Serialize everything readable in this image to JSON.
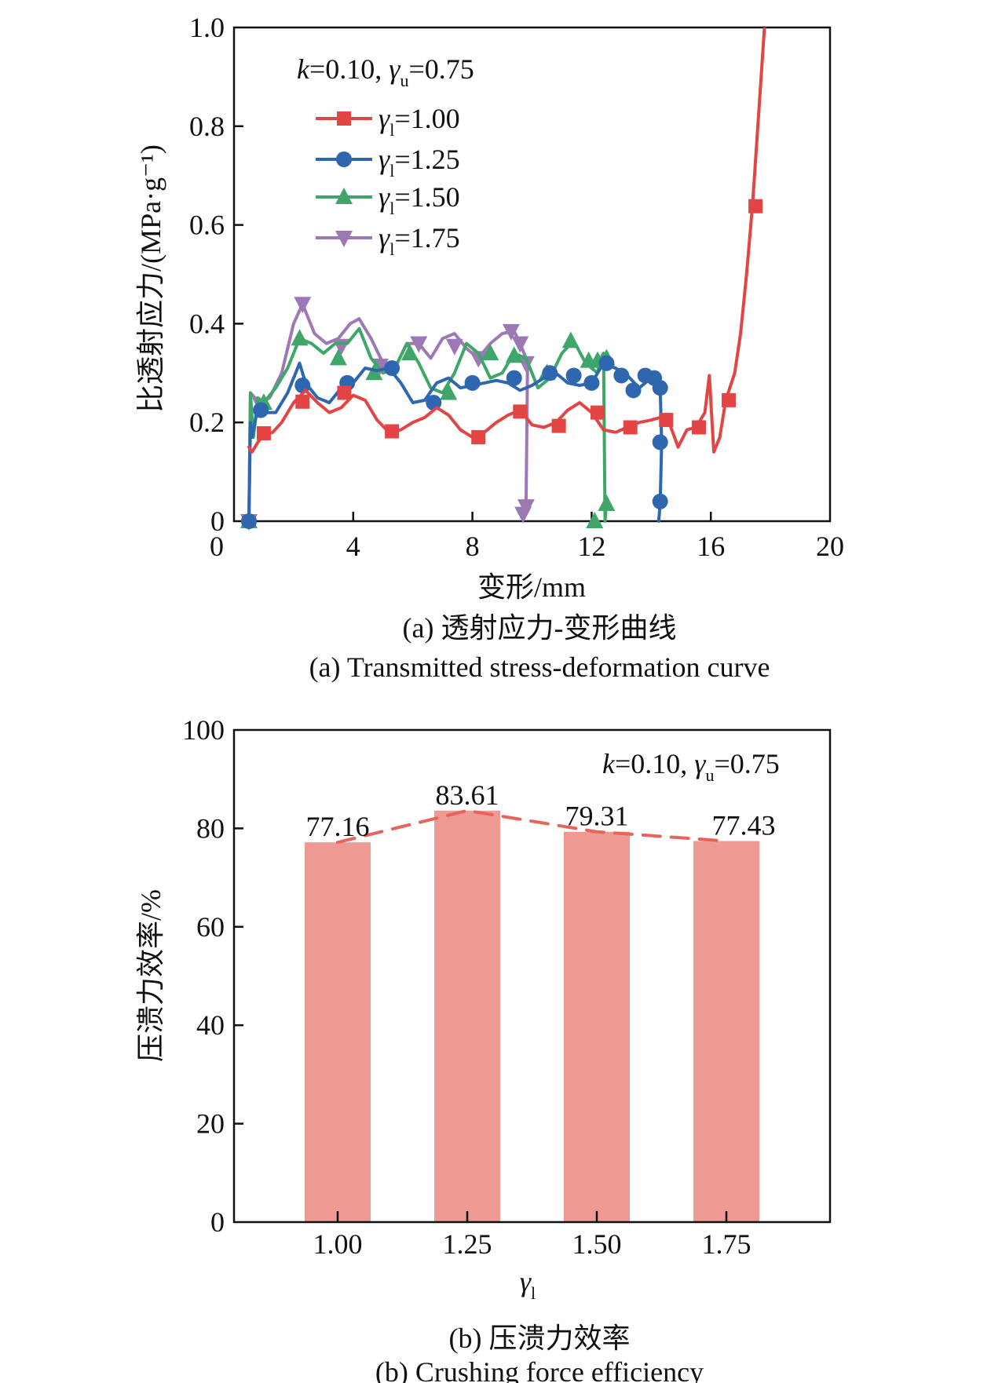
{
  "chart_data": [
    {
      "type": "line",
      "title": "",
      "xlabel": "变形/mm",
      "ylabel": "比透射应力/(MPa·g⁻¹)",
      "xlim": [
        0,
        20
      ],
      "ylim": [
        0,
        1.0
      ],
      "xticks": [
        "0",
        "4",
        "8",
        "12",
        "16",
        "20"
      ],
      "yticks": [
        "0",
        "0.2",
        "0.4",
        "0.6",
        "0.8",
        "1.0"
      ],
      "annotation": {
        "k": "k",
        "k_value": "=0.10, ",
        "gamma": "γ",
        "gamma_sub": "u",
        "gamma_value": "=0.75"
      },
      "legend_position": "top-left",
      "grid": false,
      "series": [
        {
          "name": "γl=1.00",
          "label_main": "γ",
          "label_sub": "l",
          "label_value": "=1.00",
          "color": "#E34444",
          "marker": "square",
          "x": [
            0.5,
            0.6,
            0.8,
            1.0,
            1.3,
            1.6,
            2.0,
            2.4,
            2.8,
            3.2,
            3.6,
            4.0,
            4.4,
            4.8,
            5.2,
            5.6,
            6.0,
            6.4,
            6.8,
            7.2,
            7.6,
            8.0,
            8.4,
            8.8,
            9.2,
            9.6,
            10.0,
            10.4,
            10.8,
            11.2,
            11.6,
            12.0,
            12.4,
            12.8,
            13.2,
            13.6,
            14.0,
            14.3,
            14.6,
            14.9,
            15.2,
            15.5,
            15.8,
            15.95,
            16.1,
            16.3,
            16.5,
            16.8,
            17.0,
            17.2,
            17.4,
            17.6,
            17.8
          ],
          "y": [
            0.15,
            0.14,
            0.16,
            0.175,
            0.18,
            0.2,
            0.24,
            0.265,
            0.24,
            0.22,
            0.23,
            0.255,
            0.245,
            0.205,
            0.18,
            0.185,
            0.2,
            0.21,
            0.23,
            0.215,
            0.185,
            0.17,
            0.18,
            0.2,
            0.215,
            0.225,
            0.195,
            0.19,
            0.2,
            0.225,
            0.24,
            0.22,
            0.185,
            0.18,
            0.19,
            0.2,
            0.205,
            0.21,
            0.2,
            0.15,
            0.185,
            0.19,
            0.22,
            0.295,
            0.14,
            0.17,
            0.245,
            0.3,
            0.38,
            0.5,
            0.64,
            0.82,
            1.0
          ],
          "marker_x": [
            1.0,
            2.3,
            3.7,
            5.3,
            8.2,
            9.6,
            10.9,
            12.2,
            13.3,
            14.5,
            15.6,
            16.6,
            17.5
          ],
          "marker_y": [
            0.178,
            0.242,
            0.26,
            0.182,
            0.17,
            0.222,
            0.193,
            0.22,
            0.19,
            0.205,
            0.19,
            0.245,
            0.638
          ]
        },
        {
          "name": "γl=1.25",
          "label_main": "γ",
          "label_sub": "l",
          "label_value": "=1.25",
          "color": "#2E66B0",
          "marker": "circle",
          "x": [
            0.5,
            0.55,
            0.6,
            0.8,
            1.0,
            1.4,
            1.8,
            2.2,
            2.4,
            2.8,
            3.2,
            3.6,
            4.0,
            4.4,
            4.8,
            5.2,
            5.6,
            6.0,
            6.4,
            6.8,
            7.2,
            7.6,
            8.0,
            8.4,
            8.8,
            9.2,
            9.6,
            10.0,
            10.4,
            10.8,
            11.2,
            11.6,
            12.0,
            12.4,
            12.8,
            13.2,
            13.6,
            14.0,
            14.2,
            14.3,
            14.35,
            14.3,
            14.25
          ],
          "y": [
            0.0,
            0.2,
            0.17,
            0.23,
            0.22,
            0.22,
            0.26,
            0.32,
            0.28,
            0.25,
            0.24,
            0.27,
            0.28,
            0.31,
            0.305,
            0.31,
            0.28,
            0.24,
            0.245,
            0.28,
            0.29,
            0.27,
            0.275,
            0.28,
            0.285,
            0.28,
            0.265,
            0.275,
            0.29,
            0.3,
            0.28,
            0.275,
            0.28,
            0.32,
            0.31,
            0.295,
            0.27,
            0.29,
            0.28,
            0.27,
            0.16,
            0.035,
            0.0
          ],
          "marker_x": [
            0.5,
            0.9,
            2.3,
            3.8,
            5.3,
            6.7,
            8.0,
            9.4,
            10.6,
            11.4,
            12.0,
            12.5,
            13.0,
            13.4,
            13.8,
            14.1,
            14.3,
            14.3,
            14.3
          ],
          "marker_y": [
            0.0,
            0.225,
            0.275,
            0.28,
            0.31,
            0.24,
            0.28,
            0.29,
            0.3,
            0.295,
            0.28,
            0.32,
            0.295,
            0.265,
            0.295,
            0.29,
            0.27,
            0.16,
            0.04
          ]
        },
        {
          "name": "γl=1.50",
          "label_main": "γ",
          "label_sub": "l",
          "label_value": "=1.50",
          "color": "#3FA66A",
          "marker": "triangle-up",
          "x": [
            0.5,
            0.55,
            0.65,
            0.8,
            1.0,
            1.4,
            1.8,
            2.2,
            2.6,
            3.0,
            3.4,
            3.8,
            4.2,
            4.6,
            5.0,
            5.4,
            5.8,
            6.2,
            6.6,
            7.0,
            7.4,
            7.8,
            8.2,
            8.6,
            9.0,
            9.4,
            9.8,
            10.2,
            10.6,
            11.0,
            11.4,
            11.8,
            12.2,
            12.3,
            12.4,
            12.45,
            12.5
          ],
          "y": [
            0.0,
            0.26,
            0.17,
            0.25,
            0.24,
            0.27,
            0.31,
            0.37,
            0.36,
            0.34,
            0.36,
            0.36,
            0.39,
            0.33,
            0.3,
            0.31,
            0.36,
            0.32,
            0.27,
            0.26,
            0.3,
            0.36,
            0.34,
            0.29,
            0.3,
            0.34,
            0.33,
            0.27,
            0.29,
            0.34,
            0.365,
            0.32,
            0.3,
            0.33,
            0.34,
            0.0,
            0.04
          ],
          "marker_x": [
            0.5,
            1.0,
            2.2,
            3.5,
            4.7,
            5.9,
            7.2,
            8.6,
            9.4,
            10.5,
            11.3,
            11.9,
            12.2,
            12.5,
            12.1,
            12.5
          ],
          "marker_y": [
            0.0,
            0.24,
            0.37,
            0.33,
            0.3,
            0.34,
            0.26,
            0.34,
            0.335,
            0.3,
            0.365,
            0.325,
            0.325,
            0.33,
            0.0,
            0.035
          ]
        },
        {
          "name": "γl=1.75",
          "label_main": "γ",
          "label_sub": "l",
          "label_value": "=1.75",
          "color": "#9C78B5",
          "marker": "triangle-down",
          "x": [
            0.5,
            0.55,
            0.7,
            0.9,
            1.2,
            1.6,
            2.0,
            2.3,
            2.7,
            3.1,
            3.5,
            3.9,
            4.2,
            4.6,
            5.0,
            5.4,
            5.8,
            6.2,
            6.6,
            7.0,
            7.4,
            7.8,
            8.2,
            8.6,
            9.0,
            9.4,
            9.6,
            9.8,
            9.85,
            9.8,
            9.7
          ],
          "y": [
            0.0,
            0.26,
            0.25,
            0.24,
            0.25,
            0.3,
            0.4,
            0.44,
            0.38,
            0.36,
            0.37,
            0.4,
            0.41,
            0.37,
            0.32,
            0.31,
            0.36,
            0.36,
            0.33,
            0.37,
            0.38,
            0.35,
            0.33,
            0.36,
            0.38,
            0.385,
            0.36,
            0.33,
            0.32,
            0.03,
            0.01
          ],
          "marker_x": [
            0.5,
            0.9,
            2.3,
            3.6,
            4.9,
            6.2,
            7.4,
            8.2,
            9.3,
            9.6,
            9.8,
            9.8,
            9.7
          ],
          "marker_y": [
            0.0,
            0.235,
            0.44,
            0.355,
            0.315,
            0.36,
            0.355,
            0.33,
            0.385,
            0.36,
            0.32,
            0.03,
            0.015
          ]
        }
      ]
    },
    {
      "type": "bar",
      "title": "",
      "xlabel": "γl",
      "xlabel_main": "γ",
      "xlabel_sub": "l",
      "ylabel": "压溃力效率/%",
      "ylim": [
        0,
        100
      ],
      "yticks": [
        "0",
        "20",
        "40",
        "60",
        "80",
        "100"
      ],
      "categories": [
        "1.00",
        "1.25",
        "1.50",
        "1.75"
      ],
      "values": [
        77.16,
        83.61,
        79.31,
        77.43
      ],
      "data_labels": [
        "77.16",
        "83.61",
        "79.31",
        "77.43"
      ],
      "bar_color": "#EE9A93",
      "trend_line_color": "#E8635A",
      "trend_line_style": "dashed",
      "annotation": {
        "k": "k",
        "k_value": "=0.10, ",
        "gamma": "γ",
        "gamma_sub": "u",
        "gamma_value": "=0.75"
      },
      "grid": false
    }
  ],
  "captions": {
    "a_cn": "(a) 透射应力-变形曲线",
    "a_en": "(a) Transmitted stress-deformation curve",
    "b_cn": "(b) 压溃力效率",
    "b_en": "(b) Crushing force efficiency"
  }
}
